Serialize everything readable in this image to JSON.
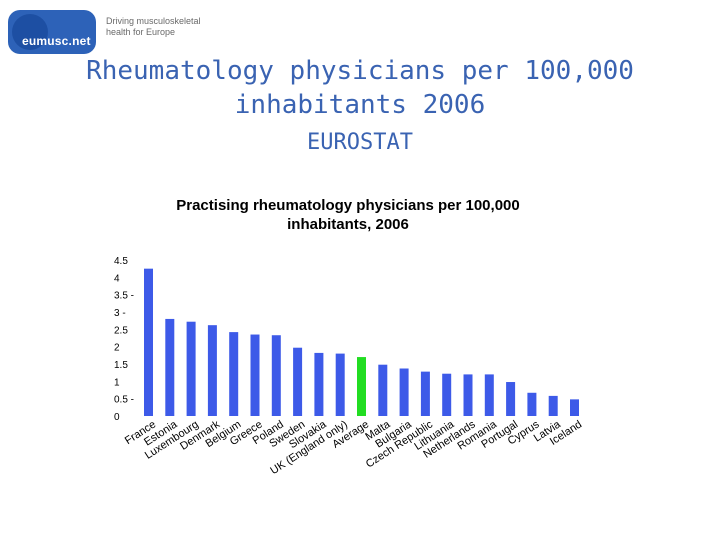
{
  "header": {
    "logo_name": "eumusc.net",
    "logo_tagline_1": "Driving musculoskeletal",
    "logo_tagline_2": "health for Europe",
    "title_line1": "Rheumatology physicians per 100,000",
    "title_line2": "inhabitants 2006",
    "subtitle": "EUROSTAT"
  },
  "colors": {
    "bar": "#3d5ae8",
    "highlight": "#22dd22",
    "title": "#3a63b2"
  },
  "chart_data": {
    "type": "bar",
    "title_line1": "Practising rheumatology physicians per 100,000",
    "title_line2": "inhabitants, 2006",
    "ylim": [
      0,
      4.5
    ],
    "y_ticks": [
      "0",
      "0.5 -",
      "1",
      "1.5",
      "2",
      "2.5",
      "3 -",
      "3.5 -",
      "4",
      "4.5"
    ],
    "highlight_category": "Average",
    "categories": [
      "France",
      "Estonia",
      "Luxembourg",
      "Denmark",
      "Belgium",
      "Greece",
      "Poland",
      "Sweden",
      "Slovakia",
      "UK (England only)",
      "Average",
      "Malta",
      "Bulgaria",
      "Czech Republic",
      "Lithuania",
      "Netherlands",
      "Romania",
      "Portugal",
      "Cyprus",
      "Latvia",
      "Iceland"
    ],
    "values": [
      4.25,
      2.8,
      2.72,
      2.62,
      2.42,
      2.35,
      2.33,
      1.97,
      1.82,
      1.8,
      1.7,
      1.48,
      1.37,
      1.28,
      1.22,
      1.2,
      1.2,
      0.98,
      0.67,
      0.58,
      0.48
    ]
  }
}
